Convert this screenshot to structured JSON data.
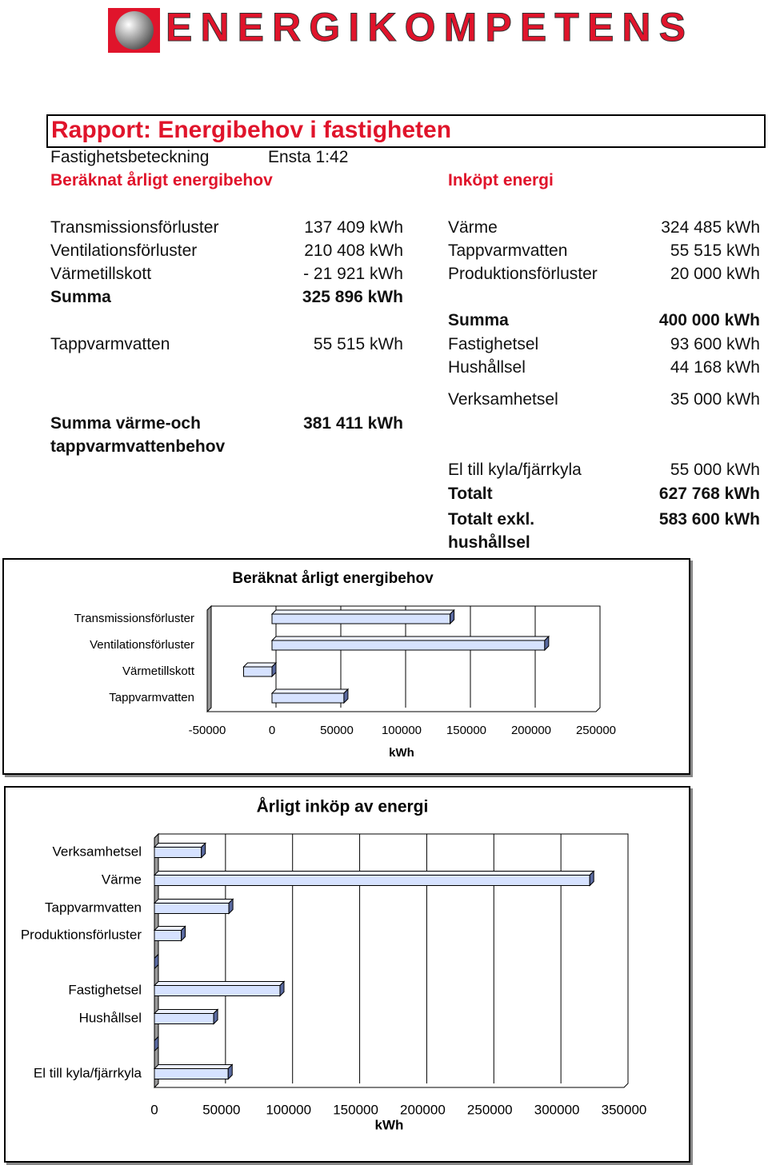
{
  "header": {
    "logo_text": "ENERGIKOMPETENS"
  },
  "report": {
    "title": "Rapport: Energibehov i fastigheten",
    "property_label": "Fastighetsbeteckning",
    "property_value": "Ensta 1:42",
    "left_heading": "Beräknat årligt energibehov",
    "right_heading": "Inköpt energi",
    "left_rows": [
      {
        "label": "Transmissionsförluster",
        "value": "137 409 kWh"
      },
      {
        "label": "Ventilationsförluster",
        "value": "210 408 kWh"
      },
      {
        "label": "Värmetillskott",
        "value": "- 21 921 kWh"
      },
      {
        "label": "Summa",
        "value": "325 896 kWh"
      },
      {
        "label": "Tappvarmvatten",
        "value": "55 515 kWh"
      },
      {
        "label": "Summa värme-och tappvarmvattenbehov",
        "value": "381 411 kWh"
      }
    ],
    "right_rows": [
      {
        "label": "Värme",
        "value": "324 485 kWh"
      },
      {
        "label": "Tappvarmvatten",
        "value": "55 515 kWh"
      },
      {
        "label": "Produktionsförluster",
        "value": "20 000 kWh"
      },
      {
        "label": "Summa",
        "value": "400 000 kWh"
      },
      {
        "label": "Fastighetsel",
        "value": "93 600 kWh"
      },
      {
        "label": "Hushållsel",
        "value": "44 168 kWh"
      },
      {
        "label": "Verksamhetsel",
        "value": "35 000 kWh"
      },
      {
        "label": "El till kyla/fjärrkyla",
        "value": "55 000 kWh"
      },
      {
        "label": "Totalt",
        "value": "627 768 kWh"
      },
      {
        "label": "Totalt exkl. hushållsel",
        "value": "583 600 kWh"
      }
    ]
  },
  "chart_data": [
    {
      "type": "bar",
      "orientation": "horizontal",
      "title": "Beräknat årligt energibehov",
      "xlabel": "kWh",
      "categories": [
        "Transmissionsförluster",
        "Ventilationsförluster",
        "Värmetillskott",
        "Tappvarmvatten"
      ],
      "values": [
        137409,
        210408,
        -21921,
        55515
      ],
      "color": "#d6e2ff",
      "xlim": [
        -50000,
        250000
      ],
      "xticks": [
        -50000,
        0,
        50000,
        100000,
        150000,
        200000,
        250000
      ],
      "grid": true
    },
    {
      "type": "bar",
      "orientation": "horizontal",
      "title": "Årligt inköp av energi",
      "xlabel": "kWh",
      "categories": [
        "Verksamhetsel",
        "Värme",
        "Tappvarmvatten",
        "Produktionsförluster",
        null,
        "Fastighetsel",
        "Hushållsel",
        null,
        "El till kyla/fjärrkyla"
      ],
      "values": [
        35000,
        324485,
        55515,
        20000,
        0,
        93600,
        44168,
        0,
        55000
      ],
      "color": "#d6e2ff",
      "xlim": [
        0,
        350000
      ],
      "xticks": [
        0,
        50000,
        100000,
        150000,
        200000,
        250000,
        300000,
        350000
      ],
      "grid": true
    }
  ]
}
